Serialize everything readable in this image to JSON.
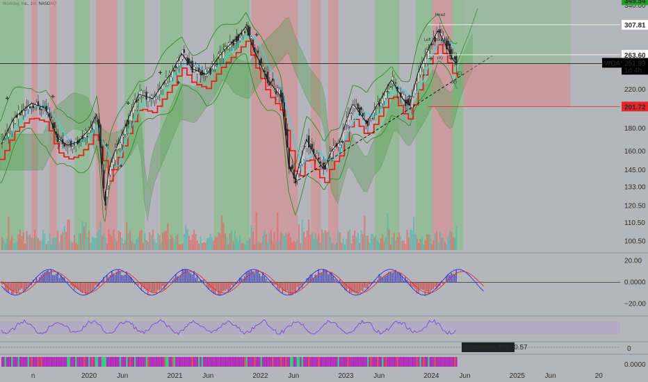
{
  "header": {
    "title": "Workday, Inc., 1W, NASDAQ"
  },
  "chart_data": [
    {
      "type": "candlestick",
      "title": "",
      "symbol": "WDAY",
      "timeframe": "1W",
      "price_scale": "log",
      "xlim": [
        "2019-01-01",
        "2026-04-01"
      ],
      "ylim": [
        96,
        350
      ],
      "x_ticks": [
        {
          "label": "n",
          "date": "2019-06-01"
        },
        {
          "label": "2020",
          "date": "2020-01-01"
        },
        {
          "label": "Jun",
          "date": "2020-06-01"
        },
        {
          "label": "2021",
          "date": "2021-01-01"
        },
        {
          "label": "Jun",
          "date": "2021-06-01"
        },
        {
          "label": "2022",
          "date": "2022-01-01"
        },
        {
          "label": "Jun",
          "date": "2022-06-01"
        },
        {
          "label": "2023",
          "date": "2023-01-01"
        },
        {
          "label": "Jun",
          "date": "2023-06-01"
        },
        {
          "label": "2024",
          "date": "2024-01-01"
        },
        {
          "label": "Jun",
          "date": "2024-06-01"
        },
        {
          "label": "2025",
          "date": "2025-01-01"
        },
        {
          "label": "Jun",
          "date": "2025-06-01"
        },
        {
          "label": "20",
          "date": "2026-01-01"
        }
      ],
      "y_ticks": [
        100.5,
        110.5,
        120.5,
        133.0,
        145.0,
        160.0,
        180.0,
        201.72,
        220.0,
        263.6,
        307.81,
        340.0
      ],
      "price_tags": [
        {
          "label": "349.54",
          "value": 349.54,
          "color": "#22a02a"
        },
        {
          "label": "307.81",
          "value": 307.81,
          "color": "#ffffff"
        },
        {
          "label": "263.60",
          "value": 263.6,
          "color": "#ffffff"
        },
        {
          "label": "201.72",
          "value": 201.72,
          "color": "#e8262a"
        }
      ],
      "current_price": {
        "symbol": "WDAY",
        "value": "251.99",
        "countdown": "1d 4h"
      },
      "price_path": [
        [
          "2019-01-05",
          165
        ],
        [
          "2019-03-01",
          190
        ],
        [
          "2019-05-15",
          205
        ],
        [
          "2019-07-15",
          200
        ],
        [
          "2019-09-01",
          172
        ],
        [
          "2019-10-15",
          165
        ],
        [
          "2019-12-01",
          168
        ],
        [
          "2020-01-20",
          180
        ],
        [
          "2020-02-20",
          195
        ],
        [
          "2020-03-20",
          120
        ],
        [
          "2020-04-15",
          150
        ],
        [
          "2020-06-15",
          180
        ],
        [
          "2020-08-15",
          215
        ],
        [
          "2020-10-15",
          210
        ],
        [
          "2021-01-01",
          240
        ],
        [
          "2021-02-15",
          265
        ],
        [
          "2021-04-01",
          245
        ],
        [
          "2021-06-01",
          238
        ],
        [
          "2021-08-01",
          265
        ],
        [
          "2021-10-15",
          290
        ],
        [
          "2021-11-15",
          305
        ],
        [
          "2021-12-20",
          270
        ],
        [
          "2022-02-15",
          232
        ],
        [
          "2022-04-15",
          212
        ],
        [
          "2022-05-15",
          150
        ],
        [
          "2022-06-15",
          138
        ],
        [
          "2022-08-01",
          170
        ],
        [
          "2022-09-10",
          155
        ],
        [
          "2022-10-15",
          145
        ],
        [
          "2022-11-15",
          160
        ],
        [
          "2022-12-20",
          168
        ],
        [
          "2023-02-15",
          205
        ],
        [
          "2023-04-15",
          185
        ],
        [
          "2023-06-15",
          210
        ],
        [
          "2023-07-30",
          232
        ],
        [
          "2023-09-15",
          210
        ],
        [
          "2023-10-15",
          202
        ],
        [
          "2023-11-20",
          240
        ],
        [
          "2024-01-01",
          270
        ],
        [
          "2024-02-15",
          300
        ],
        [
          "2024-03-01",
          288
        ],
        [
          "2024-04-01",
          268
        ],
        [
          "2024-04-15",
          258
        ],
        [
          "2024-05-01",
          252
        ]
      ],
      "annotations": [
        {
          "text": "Head",
          "date": "2024-02-01",
          "value": 322
        },
        {
          "text": "Left Shoulder",
          "date": "2023-12-15",
          "value": 283
        },
        {
          "text": "(A)",
          "date": "2024-02-10",
          "value": 258
        },
        {
          "text": "(C)",
          "date": "2024-05-01",
          "value": 238
        },
        {
          "text": "(B)",
          "date": "2024-04-10",
          "value": 228
        }
      ],
      "markers": {
        "buy": [
          [
            "2020-04-01",
            165
          ],
          [
            "2020-07-01",
            205
          ],
          [
            "2021-02-01",
            228
          ],
          [
            "2023-01-01",
            168
          ],
          [
            "2023-10-15",
            212
          ],
          [
            "2024-01-15",
            258
          ]
        ],
        "sell": [
          [
            "2019-02-01",
            210
          ],
          [
            "2019-08-15",
            212
          ],
          [
            "2020-06-01",
            148
          ],
          [
            "2020-11-15",
            240
          ],
          [
            "2022-01-01",
            292
          ],
          [
            "2024-04-10",
            258
          ]
        ]
      }
    },
    {
      "type": "line",
      "title": "",
      "ylim": [
        -30,
        26
      ],
      "y_ticks": [
        {
          "label": "20.00",
          "value": 20
        },
        {
          "label": "0.0000",
          "value": 0
        },
        {
          "label": "−20.00",
          "value": -20
        }
      ]
    },
    {
      "type": "line",
      "title": "",
      "y_ticks": [
        {
          "label": "0",
          "value": 0
        }
      ],
      "label": "Stochastic RSI: 0.57"
    },
    {
      "type": "bar",
      "title": "",
      "y_ticks": [
        {
          "label": "0.0000",
          "value": 0
        }
      ]
    }
  ]
}
